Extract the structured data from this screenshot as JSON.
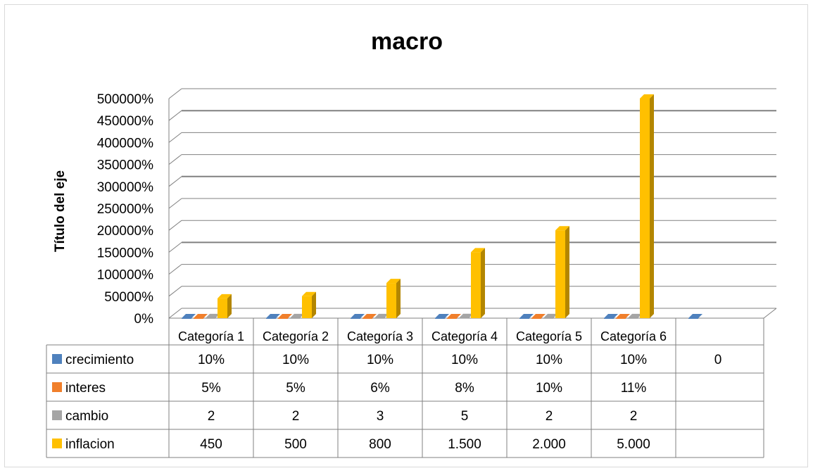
{
  "chart_data": {
    "type": "bar",
    "title": "macro",
    "ylabel": "Título del eje",
    "xlabel": "",
    "categories": [
      "Categoría 1",
      "Categoría 2",
      "Categoría 3",
      "Categoría 4",
      "Categoría 5",
      "Categoría 6",
      ""
    ],
    "ylim": [
      0,
      5000
    ],
    "y_ticks": [
      "0%",
      "50000%",
      "100000%",
      "150000%",
      "200000%",
      "250000%",
      "300000%",
      "350000%",
      "400000%",
      "450000%",
      "500000%"
    ],
    "grid": true,
    "legend": "in-table",
    "series": [
      {
        "name": "crecimiento",
        "color": "#4f81bd",
        "values": [
          0.1,
          0.1,
          0.1,
          0.1,
          0.1,
          0.1,
          0
        ],
        "display": [
          "10%",
          "10%",
          "10%",
          "10%",
          "10%",
          "10%",
          "0"
        ]
      },
      {
        "name": "interes",
        "color": "#f07f2b",
        "values": [
          0.05,
          0.05,
          0.06,
          0.08,
          0.1,
          0.11,
          null
        ],
        "display": [
          "5%",
          "5%",
          "6%",
          "8%",
          "10%",
          "11%",
          ""
        ]
      },
      {
        "name": "cambio",
        "color": "#a5a5a5",
        "values": [
          2,
          2,
          3,
          5,
          2,
          2,
          null
        ],
        "display": [
          "2",
          "2",
          "3",
          "5",
          "2",
          "2",
          ""
        ]
      },
      {
        "name": "inflacion",
        "color": "#ffc000",
        "values": [
          450,
          500,
          800,
          1500,
          2000,
          5000,
          null
        ],
        "display": [
          "450",
          "500",
          "800",
          "1.500",
          "2.000",
          "5.000",
          ""
        ]
      }
    ]
  }
}
